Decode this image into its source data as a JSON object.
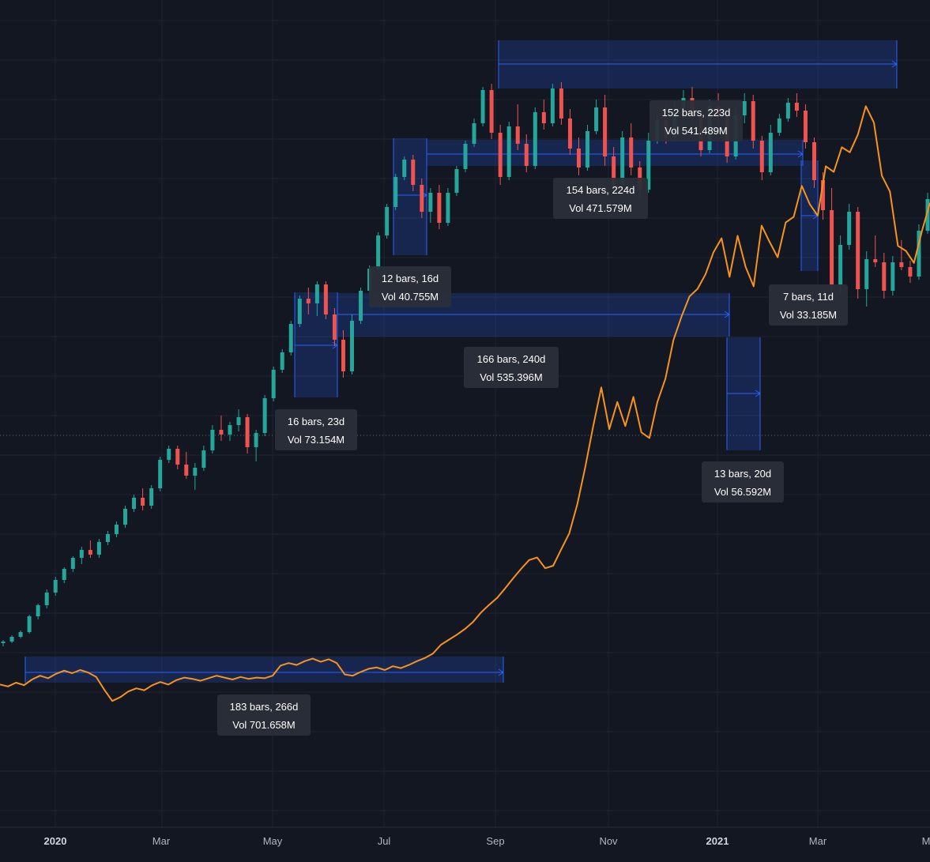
{
  "colors": {
    "background": "#131722",
    "grid": "#1f2330",
    "up": "#26a69a",
    "down": "#ef5350",
    "overlay_line": "#f7931a",
    "measure_fill": "#2962ff",
    "measure_line": "#2962ff",
    "label_bg": "#2a2e39",
    "label_text": "#ffffff",
    "axis_text": "#b2b5be"
  },
  "x_axis": {
    "labels": [
      {
        "text": "2020",
        "bold": true
      },
      {
        "text": "Mar",
        "bold": false
      },
      {
        "text": "May",
        "bold": false
      },
      {
        "text": "Jul",
        "bold": false
      },
      {
        "text": "Sep",
        "bold": false
      },
      {
        "text": "Nov",
        "bold": false
      },
      {
        "text": "2021",
        "bold": true
      },
      {
        "text": "Mar",
        "bold": false
      },
      {
        "text": "M",
        "bold": false
      }
    ]
  },
  "chart_data": {
    "type": "candlestick",
    "grid": true,
    "y_axis_visible": false,
    "x_axis_labels": [
      "2020",
      "Mar",
      "May",
      "Jul",
      "Sep",
      "Nov",
      "2021",
      "Mar",
      "M"
    ],
    "candles": [
      [
        0.8,
        1.0,
        0.6,
        0.9
      ],
      [
        0.9,
        1.3,
        0.8,
        1.2
      ],
      [
        1.2,
        1.6,
        1.1,
        1.5
      ],
      [
        1.5,
        2.6,
        1.4,
        2.5
      ],
      [
        2.5,
        3.3,
        2.3,
        3.2
      ],
      [
        3.2,
        4.2,
        3.0,
        4.0
      ],
      [
        4.0,
        5.0,
        3.8,
        4.8
      ],
      [
        4.8,
        5.6,
        4.6,
        5.5
      ],
      [
        5.5,
        6.3,
        5.3,
        6.2
      ],
      [
        6.2,
        6.9,
        5.8,
        6.7
      ],
      [
        6.7,
        7.3,
        6.2,
        6.4
      ],
      [
        6.4,
        7.4,
        6.2,
        7.2
      ],
      [
        7.2,
        7.9,
        7.0,
        7.7
      ],
      [
        7.7,
        8.5,
        7.5,
        8.3
      ],
      [
        8.3,
        9.5,
        8.1,
        9.3
      ],
      [
        9.3,
        10.2,
        9.1,
        10.0
      ],
      [
        10.0,
        10.6,
        9.2,
        9.5
      ],
      [
        9.5,
        10.8,
        9.3,
        10.6
      ],
      [
        10.6,
        12.6,
        10.4,
        12.4
      ],
      [
        12.4,
        13.3,
        12.2,
        13.1
      ],
      [
        13.1,
        13.3,
        11.8,
        12.1
      ],
      [
        12.1,
        12.9,
        11.2,
        11.4
      ],
      [
        11.4,
        12.2,
        10.5,
        11.9
      ],
      [
        11.9,
        13.3,
        11.7,
        13.0
      ],
      [
        13.0,
        14.6,
        12.8,
        14.3
      ],
      [
        14.3,
        15.2,
        13.6,
        14.0
      ],
      [
        14.0,
        14.8,
        13.6,
        14.6
      ],
      [
        14.6,
        15.6,
        14.2,
        15.1
      ],
      [
        15.1,
        15.3,
        12.8,
        13.2
      ],
      [
        13.2,
        14.3,
        12.3,
        14.1
      ],
      [
        14.1,
        16.5,
        13.9,
        16.3
      ],
      [
        16.3,
        18.3,
        16.1,
        18.1
      ],
      [
        18.1,
        19.4,
        17.9,
        19.2
      ],
      [
        19.2,
        21.2,
        19.0,
        21.0
      ],
      [
        21.0,
        22.8,
        20.8,
        22.6
      ],
      [
        22.6,
        23.3,
        21.6,
        22.3
      ],
      [
        22.3,
        23.7,
        21.5,
        23.5
      ],
      [
        23.5,
        23.7,
        21.3,
        21.6
      ],
      [
        21.6,
        22.0,
        19.6,
        20.0
      ],
      [
        20.0,
        20.6,
        17.6,
        18.0
      ],
      [
        18.0,
        21.6,
        17.8,
        21.2
      ],
      [
        21.2,
        23.3,
        21.0,
        23.1
      ],
      [
        23.1,
        24.7,
        22.9,
        24.5
      ],
      [
        24.5,
        26.8,
        24.3,
        26.6
      ],
      [
        26.6,
        28.6,
        26.4,
        28.4
      ],
      [
        28.4,
        30.5,
        28.2,
        30.3
      ],
      [
        30.3,
        31.6,
        30.1,
        31.4
      ],
      [
        31.4,
        31.7,
        29.4,
        29.8
      ],
      [
        29.8,
        30.2,
        27.7,
        28.1
      ],
      [
        28.1,
        29.6,
        27.4,
        29.3
      ],
      [
        29.3,
        29.8,
        27.0,
        27.4
      ],
      [
        27.4,
        29.6,
        27.2,
        29.3
      ],
      [
        29.3,
        31.0,
        29.1,
        30.8
      ],
      [
        30.8,
        32.6,
        30.6,
        32.4
      ],
      [
        32.4,
        34.0,
        32.2,
        33.7
      ],
      [
        33.7,
        36.0,
        33.5,
        35.8
      ],
      [
        35.8,
        36.2,
        32.7,
        33.1
      ],
      [
        33.1,
        33.6,
        29.8,
        30.3
      ],
      [
        30.3,
        33.8,
        30.1,
        33.5
      ],
      [
        33.5,
        34.9,
        32.0,
        32.4
      ],
      [
        32.4,
        33.0,
        30.6,
        31.0
      ],
      [
        31.0,
        34.7,
        30.8,
        34.4
      ],
      [
        34.4,
        35.2,
        33.3,
        33.7
      ],
      [
        33.7,
        36.2,
        33.5,
        35.9
      ],
      [
        35.9,
        36.3,
        33.6,
        34.0
      ],
      [
        34.0,
        34.6,
        31.7,
        32.1
      ],
      [
        32.1,
        32.8,
        30.4,
        30.9
      ],
      [
        30.9,
        33.6,
        30.7,
        33.2
      ],
      [
        33.2,
        35.2,
        33.0,
        34.7
      ],
      [
        34.7,
        35.5,
        31.0,
        31.6
      ],
      [
        31.6,
        32.2,
        29.3,
        29.8
      ],
      [
        29.8,
        33.2,
        29.6,
        32.8
      ],
      [
        32.8,
        33.7,
        30.4,
        30.9
      ],
      [
        30.9,
        31.3,
        28.9,
        29.5
      ],
      [
        29.5,
        33.1,
        29.3,
        32.6
      ],
      [
        32.6,
        34.3,
        32.4,
        33.9
      ],
      [
        33.9,
        34.9,
        32.4,
        32.8
      ],
      [
        32.8,
        35.1,
        32.6,
        34.6
      ],
      [
        34.6,
        35.8,
        34.0,
        35.3
      ],
      [
        35.3,
        36.0,
        33.6,
        34.1
      ],
      [
        34.1,
        34.5,
        31.6,
        32.0
      ],
      [
        32.0,
        35.2,
        31.8,
        34.8
      ],
      [
        34.8,
        35.6,
        33.6,
        34.1
      ],
      [
        34.1,
        34.4,
        31.2,
        31.6
      ],
      [
        31.6,
        34.7,
        31.4,
        34.2
      ],
      [
        34.2,
        35.6,
        33.7,
        35.1
      ],
      [
        35.1,
        35.5,
        32.1,
        32.6
      ],
      [
        32.6,
        32.9,
        30.1,
        30.6
      ],
      [
        30.6,
        33.6,
        30.4,
        33.1
      ],
      [
        33.1,
        34.3,
        32.9,
        34.0
      ],
      [
        34.0,
        35.3,
        33.8,
        35.0
      ],
      [
        35.0,
        35.6,
        34.1,
        34.5
      ],
      [
        34.5,
        34.9,
        32.1,
        32.5
      ],
      [
        32.5,
        32.8,
        29.6,
        30.1
      ],
      [
        30.1,
        30.6,
        27.6,
        28.2
      ],
      [
        28.2,
        29.6,
        22.6,
        23.5
      ],
      [
        23.5,
        26.6,
        22.9,
        26.0
      ],
      [
        26.0,
        28.6,
        25.7,
        28.1
      ],
      [
        28.1,
        28.4,
        22.6,
        23.2
      ],
      [
        23.2,
        25.6,
        22.1,
        25.1
      ],
      [
        25.1,
        26.6,
        24.6,
        24.9
      ],
      [
        24.9,
        25.5,
        22.6,
        23.1
      ],
      [
        23.1,
        25.3,
        22.8,
        24.9
      ],
      [
        24.9,
        26.3,
        24.4,
        24.6
      ],
      [
        24.6,
        25.0,
        23.6,
        24.0
      ],
      [
        24.0,
        27.3,
        23.8,
        26.9
      ],
      [
        26.9,
        29.3,
        26.7,
        28.9
      ]
    ],
    "overlay_line": {
      "color": "#f7931a",
      "values": [
        4.2,
        3.9,
        4.5,
        4.1,
        5.0,
        5.6,
        5.2,
        5.9,
        6.4,
        6.0,
        6.5,
        6.1,
        5.4,
        3.4,
        1.6,
        2.2,
        3.1,
        3.6,
        3.3,
        4.1,
        4.6,
        4.2,
        4.9,
        5.3,
        5.1,
        4.8,
        5.2,
        5.6,
        5.3,
        5.0,
        5.4,
        5.1,
        5.3,
        5.2,
        5.6,
        7.2,
        7.6,
        7.3,
        7.9,
        8.3,
        7.8,
        8.2,
        7.6,
        5.8,
        5.6,
        6.2,
        6.7,
        6.9,
        6.5,
        7.1,
        6.8,
        7.3,
        7.9,
        8.4,
        9.1,
        10.5,
        11.3,
        12.1,
        13.0,
        14.1,
        15.6,
        16.8,
        17.9,
        19.4,
        21.0,
        22.5,
        23.9,
        24.3,
        22.6,
        23.0,
        25.6,
        28.1,
        32.7,
        38.6,
        45.1,
        51.2,
        44.6,
        48.9,
        45.1,
        49.7,
        44.1,
        43.2,
        48.9,
        52.6,
        58.7,
        62.4,
        65.6,
        66.8,
        69.1,
        72.6,
        74.8,
        68.7,
        75.2,
        70.3,
        67.2,
        76.8,
        74.2,
        71.8,
        77.3,
        78.2,
        83.1,
        80.2,
        78.4,
        86.2,
        85.3,
        89.2,
        88.4,
        91.2,
        95.7,
        93.1,
        84.7,
        82.2,
        73.6,
        72.8,
        70.9,
        76.0,
        80.4
      ]
    },
    "measurements": [
      {
        "bars": "183 bars, 266d",
        "vol": "Vol 701.658M"
      },
      {
        "bars": "16 bars, 23d",
        "vol": "Vol 73.154M"
      },
      {
        "bars": "12 bars, 16d",
        "vol": "Vol 40.755M"
      },
      {
        "bars": "166 bars, 240d",
        "vol": "Vol 535.396M"
      },
      {
        "bars": "152 bars, 223d",
        "vol": "Vol 541.489M"
      },
      {
        "bars": "154 bars, 224d",
        "vol": "Vol 471.579M"
      },
      {
        "bars": "13 bars, 20d",
        "vol": "Vol 56.592M"
      },
      {
        "bars": "7 bars, 11d",
        "vol": "Vol 33.185M"
      }
    ]
  }
}
